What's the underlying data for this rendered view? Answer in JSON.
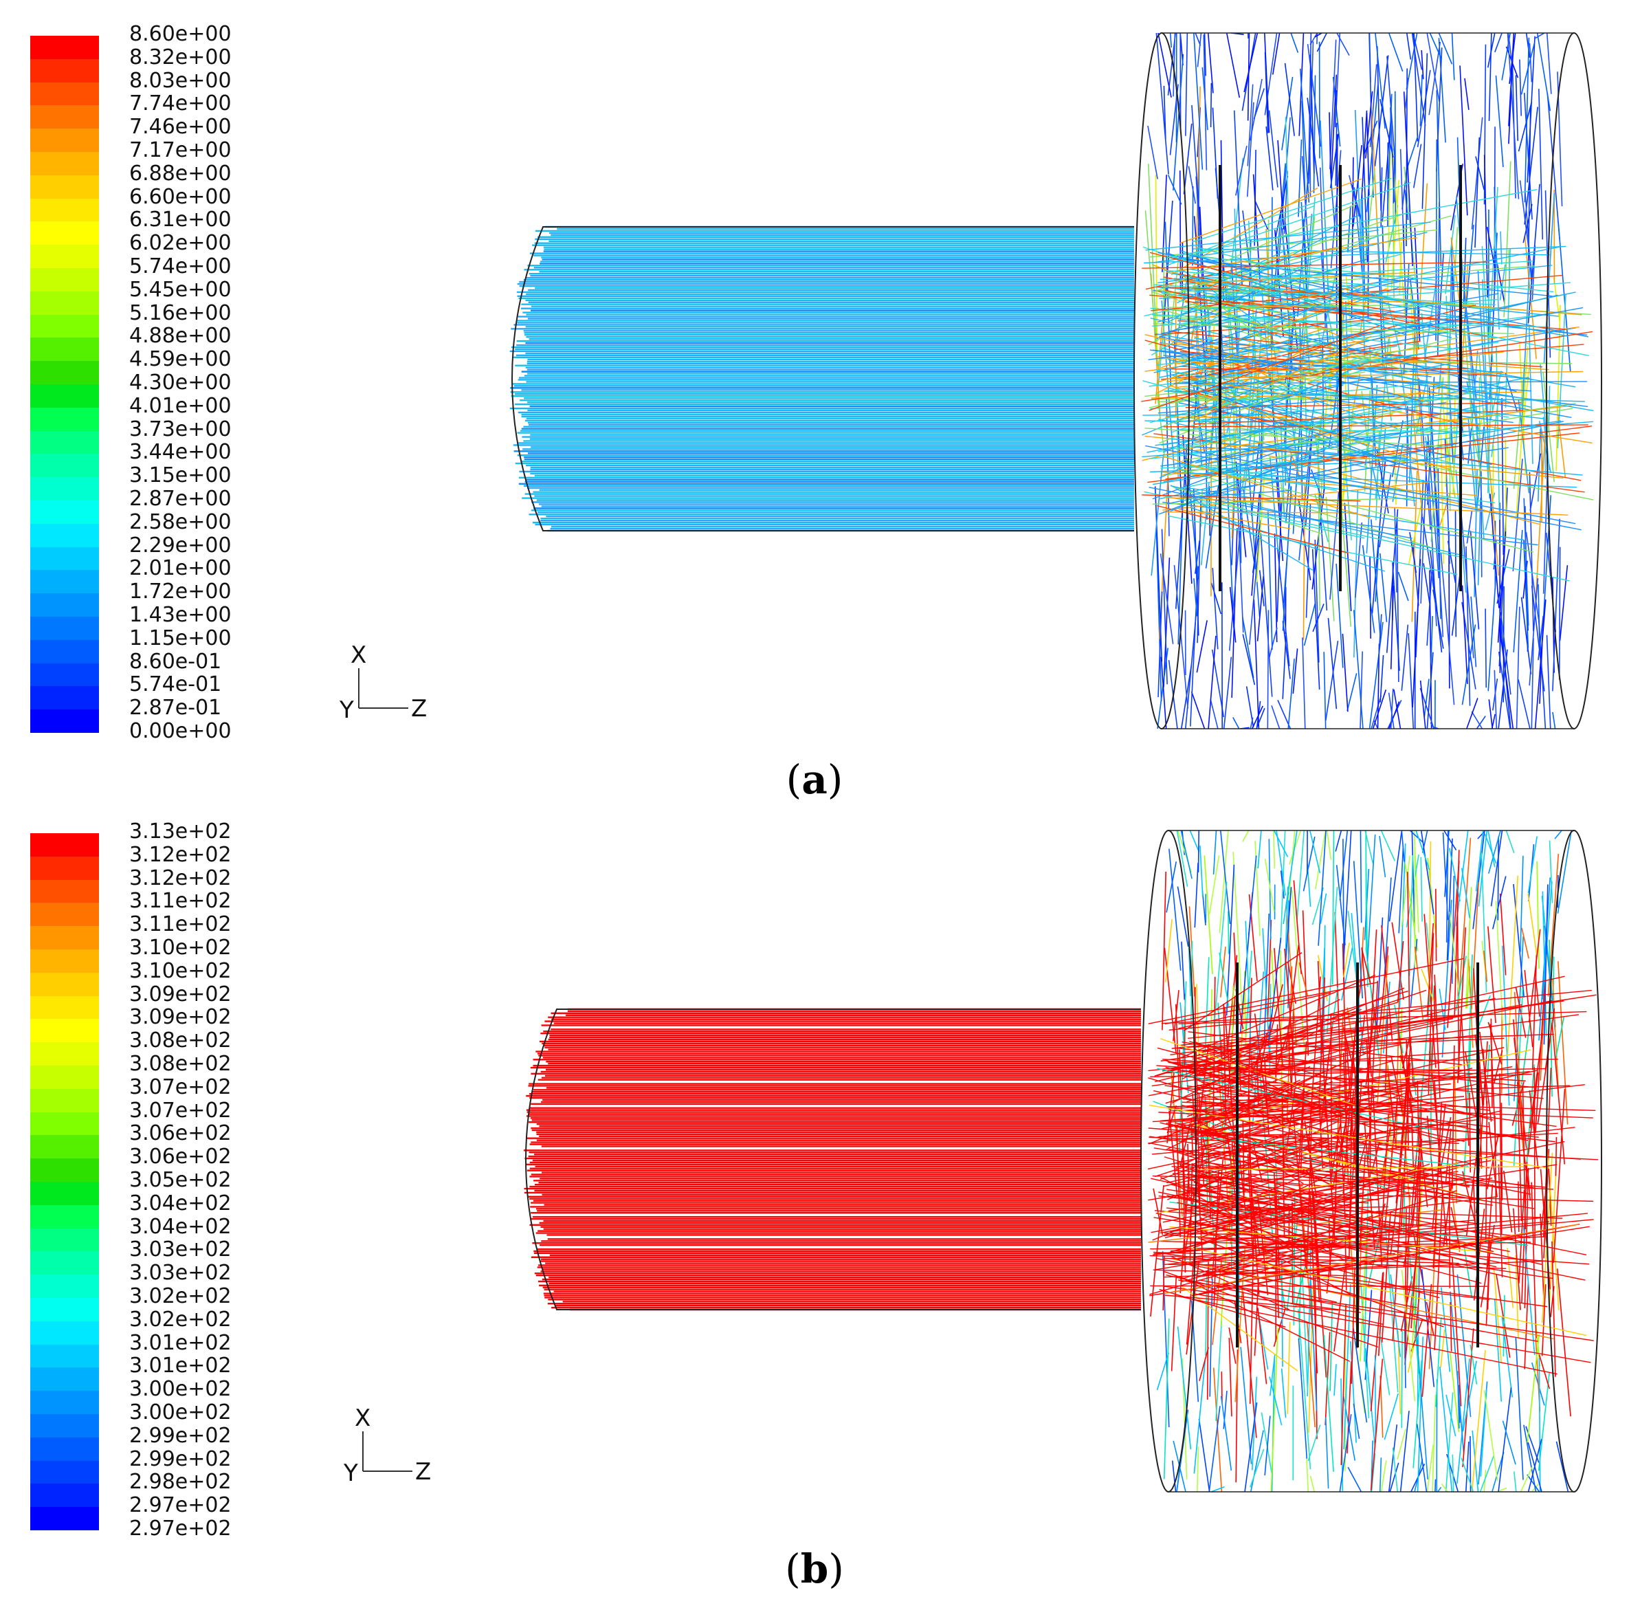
{
  "panels": [
    {
      "caption_letter": "a",
      "scale_labels": [
        "8.60e+00",
        "8.32e+00",
        "8.03e+00",
        "7.74e+00",
        "7.46e+00",
        "7.17e+00",
        "6.88e+00",
        "6.60e+00",
        "6.31e+00",
        "6.02e+00",
        "5.74e+00",
        "5.45e+00",
        "5.16e+00",
        "4.88e+00",
        "4.59e+00",
        "4.30e+00",
        "4.01e+00",
        "3.73e+00",
        "3.44e+00",
        "3.15e+00",
        "2.87e+00",
        "2.58e+00",
        "2.29e+00",
        "2.01e+00",
        "1.72e+00",
        "1.43e+00",
        "1.15e+00",
        "8.60e-01",
        "5.74e-01",
        "2.87e-01",
        "0.00e+00"
      ],
      "axes": {
        "x": "X",
        "y": "Y",
        "z": "Z"
      },
      "dominant_color": "#1ea0ff"
    },
    {
      "caption_letter": "b",
      "scale_labels": [
        "3.13e+02",
        "3.12e+02",
        "3.12e+02",
        "3.11e+02",
        "3.11e+02",
        "3.10e+02",
        "3.10e+02",
        "3.09e+02",
        "3.09e+02",
        "3.08e+02",
        "3.08e+02",
        "3.07e+02",
        "3.07e+02",
        "3.06e+02",
        "3.06e+02",
        "3.05e+02",
        "3.04e+02",
        "3.04e+02",
        "3.03e+02",
        "3.03e+02",
        "3.02e+02",
        "3.02e+02",
        "3.01e+02",
        "3.01e+02",
        "3.00e+02",
        "3.00e+02",
        "2.99e+02",
        "2.99e+02",
        "2.98e+02",
        "2.97e+02",
        "2.97e+02"
      ],
      "axes": {
        "x": "X",
        "y": "Y",
        "z": "Z"
      },
      "dominant_color": "#ff0000"
    }
  ],
  "colormap": [
    "#ff0000",
    "#ff2a00",
    "#ff5000",
    "#ff7400",
    "#ff9600",
    "#ffb400",
    "#ffcf00",
    "#ffe800",
    "#ffff00",
    "#e6ff00",
    "#c8ff00",
    "#a6ff00",
    "#80ff00",
    "#55f000",
    "#2de000",
    "#00e81e",
    "#00ff50",
    "#00ff82",
    "#00ffaa",
    "#00ffd0",
    "#00fff0",
    "#00e8ff",
    "#00ccff",
    "#00b0ff",
    "#0094ff",
    "#0078ff",
    "#005cff",
    "#0040ff",
    "#0024ff",
    "#0000ff"
  ]
}
